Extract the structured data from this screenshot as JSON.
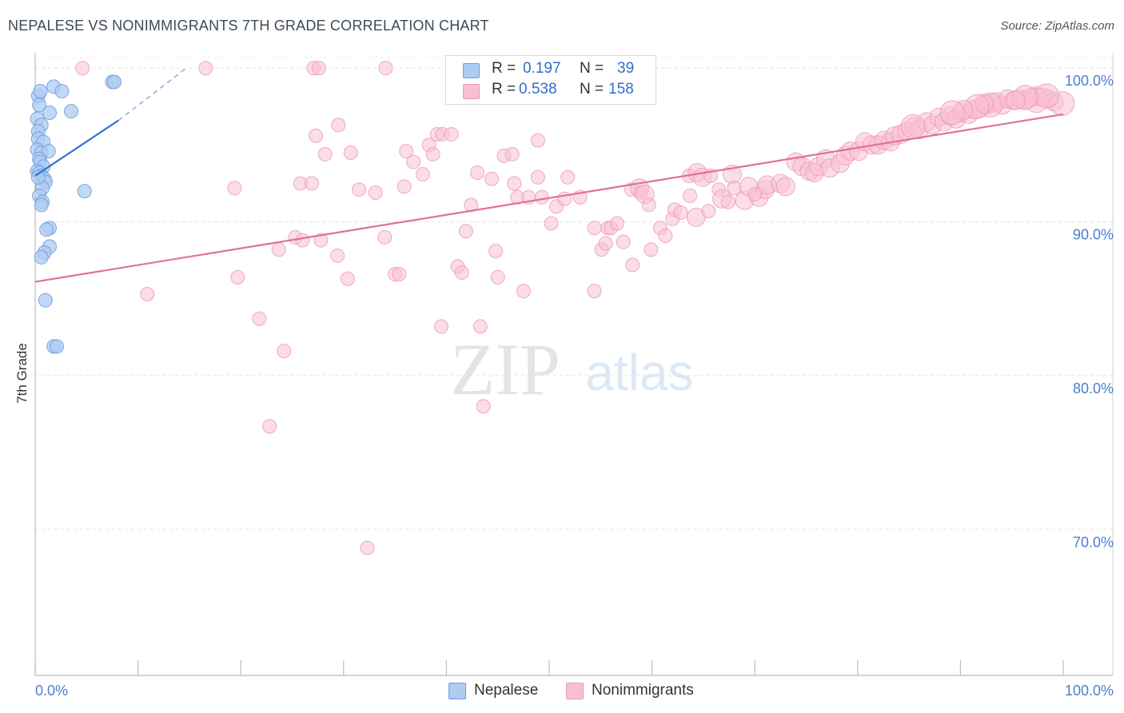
{
  "header": {
    "title": "NEPALESE VS NONIMMIGRANTS 7TH GRADE CORRELATION CHART",
    "source": "Source: ZipAtlas.com"
  },
  "legend": {
    "r_label": "R =",
    "n_label": "N =",
    "nepalese": {
      "r": "0.197",
      "n": "39"
    },
    "nonimmigrants": {
      "r": "0.538",
      "n": "158"
    }
  },
  "bottom_legend": {
    "nepalese": "Nepalese",
    "nonimmigrants": "Nonimmigrants"
  },
  "watermark": {
    "zip": "ZIP",
    "atlas": "atlas"
  },
  "colors": {
    "nepalese_fill": "#aecbf0",
    "nepalese_stroke": "#6c9fe0",
    "nepalese_line": "#2f6fd1",
    "nonimmigrants_fill": "#f9bfd1",
    "nonimmigrants_stroke": "#e99ab3",
    "nonimmigrants_line": "#e0709a",
    "tick_label": "#4a7fd0"
  },
  "chart_data": {
    "type": "scatter",
    "title": "NEPALESE VS NONIMMIGRANTS 7TH GRADE CORRELATION CHART",
    "xlabel": "",
    "ylabel": "7th Grade",
    "xlim": [
      0,
      100
    ],
    "ylim": [
      60.5,
      101
    ],
    "x_tick_labels": [
      "0.0%",
      "100.0%"
    ],
    "y_ticks": [
      {
        "value": 100,
        "label": "100.0%"
      },
      {
        "value": 90,
        "label": "90.0%"
      },
      {
        "value": 80,
        "label": "80.0%"
      },
      {
        "value": 70,
        "label": "70.0%"
      }
    ],
    "grid": true,
    "legend_position": "top-center",
    "series": [
      {
        "name": "Nepalese",
        "r": 0.197,
        "n": 39,
        "trend": {
          "x0": 0,
          "y0": 93.0,
          "x1": 8.1,
          "y1": 96.6,
          "dash_to_x": 14.7,
          "dash_to_y": 100
        },
        "points": [
          [
            0.3,
            98.2,
            1
          ],
          [
            0.4,
            97.6,
            1
          ],
          [
            0.2,
            96.7,
            1
          ],
          [
            0.6,
            96.3,
            1
          ],
          [
            0.3,
            95.9,
            1
          ],
          [
            0.3,
            95.4,
            1
          ],
          [
            0.8,
            95.2,
            1
          ],
          [
            0.2,
            94.7,
            1
          ],
          [
            0.6,
            94.5,
            1
          ],
          [
            1.3,
            94.6,
            1
          ],
          [
            0.4,
            94.1,
            1
          ],
          [
            0.5,
            93.9,
            1
          ],
          [
            0.8,
            93.6,
            1
          ],
          [
            0.2,
            93.3,
            1
          ],
          [
            0.4,
            93.2,
            1
          ],
          [
            0.6,
            93.0,
            1
          ],
          [
            0.9,
            92.8,
            1
          ],
          [
            1.0,
            92.6,
            1
          ],
          [
            0.7,
            92.2,
            1
          ],
          [
            0.4,
            91.7,
            1
          ],
          [
            0.7,
            91.3,
            1
          ],
          [
            0.6,
            91.1,
            1
          ],
          [
            1.4,
            89.6,
            1
          ],
          [
            1.1,
            89.5,
            1
          ],
          [
            1.4,
            88.4,
            1
          ],
          [
            0.9,
            88.0,
            1
          ],
          [
            0.6,
            87.7,
            1
          ],
          [
            1.0,
            84.9,
            1
          ],
          [
            1.8,
            81.9,
            1
          ],
          [
            2.1,
            81.9,
            1
          ],
          [
            1.8,
            98.8,
            1
          ],
          [
            2.6,
            98.5,
            1
          ],
          [
            7.5,
            99.1,
            1
          ],
          [
            7.7,
            99.1,
            1
          ],
          [
            3.5,
            97.2,
            1
          ],
          [
            1.4,
            97.1,
            1
          ],
          [
            4.8,
            92.0,
            1
          ],
          [
            0.3,
            92.9,
            1
          ],
          [
            0.5,
            98.5,
            1
          ]
        ]
      },
      {
        "name": "Nonimmigrants",
        "r": 0.538,
        "n": 158,
        "trend": {
          "x0": 0,
          "y0": 86.1,
          "x1": 100,
          "y1": 97.0
        },
        "points": [
          [
            4.6,
            100,
            1
          ],
          [
            16.6,
            100,
            1
          ],
          [
            27.1,
            100,
            1
          ],
          [
            27.6,
            100,
            1
          ],
          [
            34.1,
            100,
            1
          ],
          [
            10.9,
            85.3,
            1
          ],
          [
            19.4,
            92.2,
            1
          ],
          [
            19.7,
            86.4,
            1
          ],
          [
            21.8,
            83.7,
            1
          ],
          [
            23.7,
            88.2,
            1
          ],
          [
            24.2,
            81.6,
            1
          ],
          [
            22.8,
            76.7,
            1
          ],
          [
            25.3,
            89.0,
            1
          ],
          [
            26.0,
            88.8,
            1
          ],
          [
            25.8,
            92.5,
            1
          ],
          [
            26.9,
            92.5,
            1
          ],
          [
            27.8,
            88.8,
            1
          ],
          [
            27.3,
            95.6,
            1
          ],
          [
            28.2,
            94.4,
            1
          ],
          [
            29.4,
            87.8,
            1
          ],
          [
            29.5,
            96.3,
            1
          ],
          [
            30.4,
            86.3,
            1
          ],
          [
            30.7,
            94.5,
            1
          ],
          [
            31.5,
            92.1,
            1
          ],
          [
            32.3,
            68.8,
            1
          ],
          [
            33.1,
            91.9,
            1
          ],
          [
            34.0,
            89.0,
            1
          ],
          [
            35.0,
            86.6,
            1
          ],
          [
            35.4,
            86.6,
            1
          ],
          [
            35.9,
            92.3,
            1
          ],
          [
            36.1,
            94.6,
            1
          ],
          [
            36.8,
            93.9,
            1
          ],
          [
            37.7,
            93.1,
            1
          ],
          [
            38.3,
            95.0,
            1
          ],
          [
            38.7,
            94.4,
            1
          ],
          [
            39.1,
            95.7,
            1
          ],
          [
            39.6,
            95.7,
            1
          ],
          [
            40.5,
            95.7,
            1
          ],
          [
            39.5,
            83.2,
            1
          ],
          [
            41.1,
            87.1,
            1
          ],
          [
            41.5,
            86.7,
            1
          ],
          [
            41.9,
            89.4,
            1
          ],
          [
            42.4,
            91.1,
            1
          ],
          [
            43.0,
            93.2,
            1
          ],
          [
            43.3,
            83.2,
            1
          ],
          [
            43.6,
            78.0,
            1
          ],
          [
            44.4,
            92.8,
            1
          ],
          [
            44.8,
            88.1,
            1
          ],
          [
            45.0,
            86.4,
            1
          ],
          [
            45.6,
            94.3,
            1
          ],
          [
            46.4,
            94.4,
            1
          ],
          [
            46.6,
            92.5,
            1
          ],
          [
            46.9,
            91.6,
            1
          ],
          [
            47.5,
            85.5,
            1
          ],
          [
            48.0,
            91.6,
            1
          ],
          [
            48.9,
            95.3,
            1
          ],
          [
            48.9,
            92.9,
            1
          ],
          [
            49.3,
            91.6,
            1
          ],
          [
            50.2,
            89.9,
            1
          ],
          [
            50.7,
            91.0,
            1
          ],
          [
            51.5,
            91.5,
            1
          ],
          [
            51.8,
            92.9,
            1
          ],
          [
            53.0,
            91.6,
            1
          ],
          [
            54.4,
            89.6,
            1
          ],
          [
            54.4,
            85.5,
            1
          ],
          [
            55.1,
            88.2,
            1
          ],
          [
            55.5,
            88.6,
            1
          ],
          [
            55.7,
            89.6,
            1
          ],
          [
            56.0,
            89.6,
            1
          ],
          [
            56.6,
            89.9,
            1
          ],
          [
            57.2,
            88.7,
            1
          ],
          [
            58.0,
            92.1,
            1
          ],
          [
            58.1,
            87.2,
            1
          ],
          [
            58.8,
            92.2,
            2
          ],
          [
            58.9,
            91.9,
            1
          ],
          [
            59.3,
            91.8,
            2
          ],
          [
            59.7,
            91.1,
            1
          ],
          [
            59.9,
            88.2,
            1
          ],
          [
            60.8,
            89.6,
            1
          ],
          [
            61.3,
            89.1,
            1
          ],
          [
            62.0,
            90.2,
            1
          ],
          [
            62.2,
            90.8,
            1
          ],
          [
            62.8,
            90.6,
            1
          ],
          [
            63.7,
            91.7,
            1
          ],
          [
            63.6,
            93.0,
            1
          ],
          [
            64.4,
            93.2,
            2
          ],
          [
            64.9,
            92.9,
            2
          ],
          [
            64.3,
            90.3,
            2
          ],
          [
            65.5,
            90.7,
            1
          ],
          [
            66.5,
            92.1,
            1
          ],
          [
            66.8,
            91.5,
            2
          ],
          [
            67.4,
            91.3,
            1
          ],
          [
            67.8,
            93.1,
            2
          ],
          [
            68.0,
            92.2,
            1
          ],
          [
            69.0,
            91.4,
            2
          ],
          [
            69.4,
            92.3,
            2
          ],
          [
            70.4,
            91.6,
            2
          ],
          [
            71.0,
            92.1,
            2
          ],
          [
            71.2,
            92.4,
            2
          ],
          [
            72.5,
            92.5,
            2
          ],
          [
            73.0,
            92.3,
            2
          ],
          [
            74.0,
            93.9,
            2
          ],
          [
            74.6,
            93.6,
            2
          ],
          [
            75.3,
            93.3,
            2
          ],
          [
            75.8,
            93.2,
            2
          ],
          [
            76.2,
            93.6,
            2
          ],
          [
            76.9,
            94.1,
            2
          ],
          [
            77.3,
            93.5,
            2
          ],
          [
            78.3,
            93.8,
            2
          ],
          [
            78.8,
            94.3,
            2
          ],
          [
            79.3,
            94.6,
            2
          ],
          [
            80.1,
            94.6,
            2
          ],
          [
            80.7,
            95.2,
            2
          ],
          [
            81.4,
            95.0,
            2
          ],
          [
            82.0,
            95.0,
            2
          ],
          [
            82.6,
            95.3,
            2
          ],
          [
            83.2,
            95.2,
            2
          ],
          [
            83.6,
            95.6,
            2
          ],
          [
            84.2,
            95.7,
            2
          ],
          [
            84.8,
            95.9,
            2
          ],
          [
            85.5,
            96.2,
            2
          ],
          [
            86.0,
            96.0,
            2
          ],
          [
            86.7,
            96.5,
            2
          ],
          [
            87.3,
            96.3,
            2
          ],
          [
            87.9,
            96.8,
            2
          ],
          [
            88.4,
            96.5,
            2
          ],
          [
            89.0,
            96.9,
            2
          ],
          [
            89.6,
            96.7,
            2
          ],
          [
            90.1,
            97.1,
            2
          ],
          [
            90.8,
            97.0,
            2
          ],
          [
            91.3,
            97.3,
            2
          ],
          [
            91.9,
            97.4,
            2
          ],
          [
            92.4,
            97.6,
            2
          ],
          [
            93.0,
            97.7,
            2
          ],
          [
            93.5,
            97.8,
            2
          ],
          [
            94.1,
            97.6,
            2
          ],
          [
            94.6,
            98.0,
            2
          ],
          [
            95.2,
            97.9,
            2
          ],
          [
            95.8,
            98.0,
            2
          ],
          [
            96.3,
            97.9,
            2
          ],
          [
            96.9,
            98.1,
            2
          ],
          [
            97.4,
            98.2,
            2
          ],
          [
            98.0,
            98.1,
            2
          ],
          [
            98.5,
            98.0,
            2
          ],
          [
            99.1,
            97.8,
            2
          ],
          [
            99.9,
            97.7,
            3
          ],
          [
            97.4,
            97.9,
            3
          ],
          [
            98.4,
            98.2,
            3
          ],
          [
            96.3,
            98.1,
            3
          ],
          [
            95.4,
            97.9,
            2
          ],
          [
            92.9,
            97.6,
            3
          ],
          [
            92.3,
            97.7,
            2
          ],
          [
            91.6,
            97.5,
            3
          ],
          [
            90.3,
            97.3,
            2
          ],
          [
            89.2,
            97.1,
            3
          ],
          [
            85.4,
            96.2,
            3
          ],
          [
            70.0,
            91.8,
            1
          ],
          [
            65.7,
            93.0,
            1
          ]
        ]
      }
    ]
  }
}
